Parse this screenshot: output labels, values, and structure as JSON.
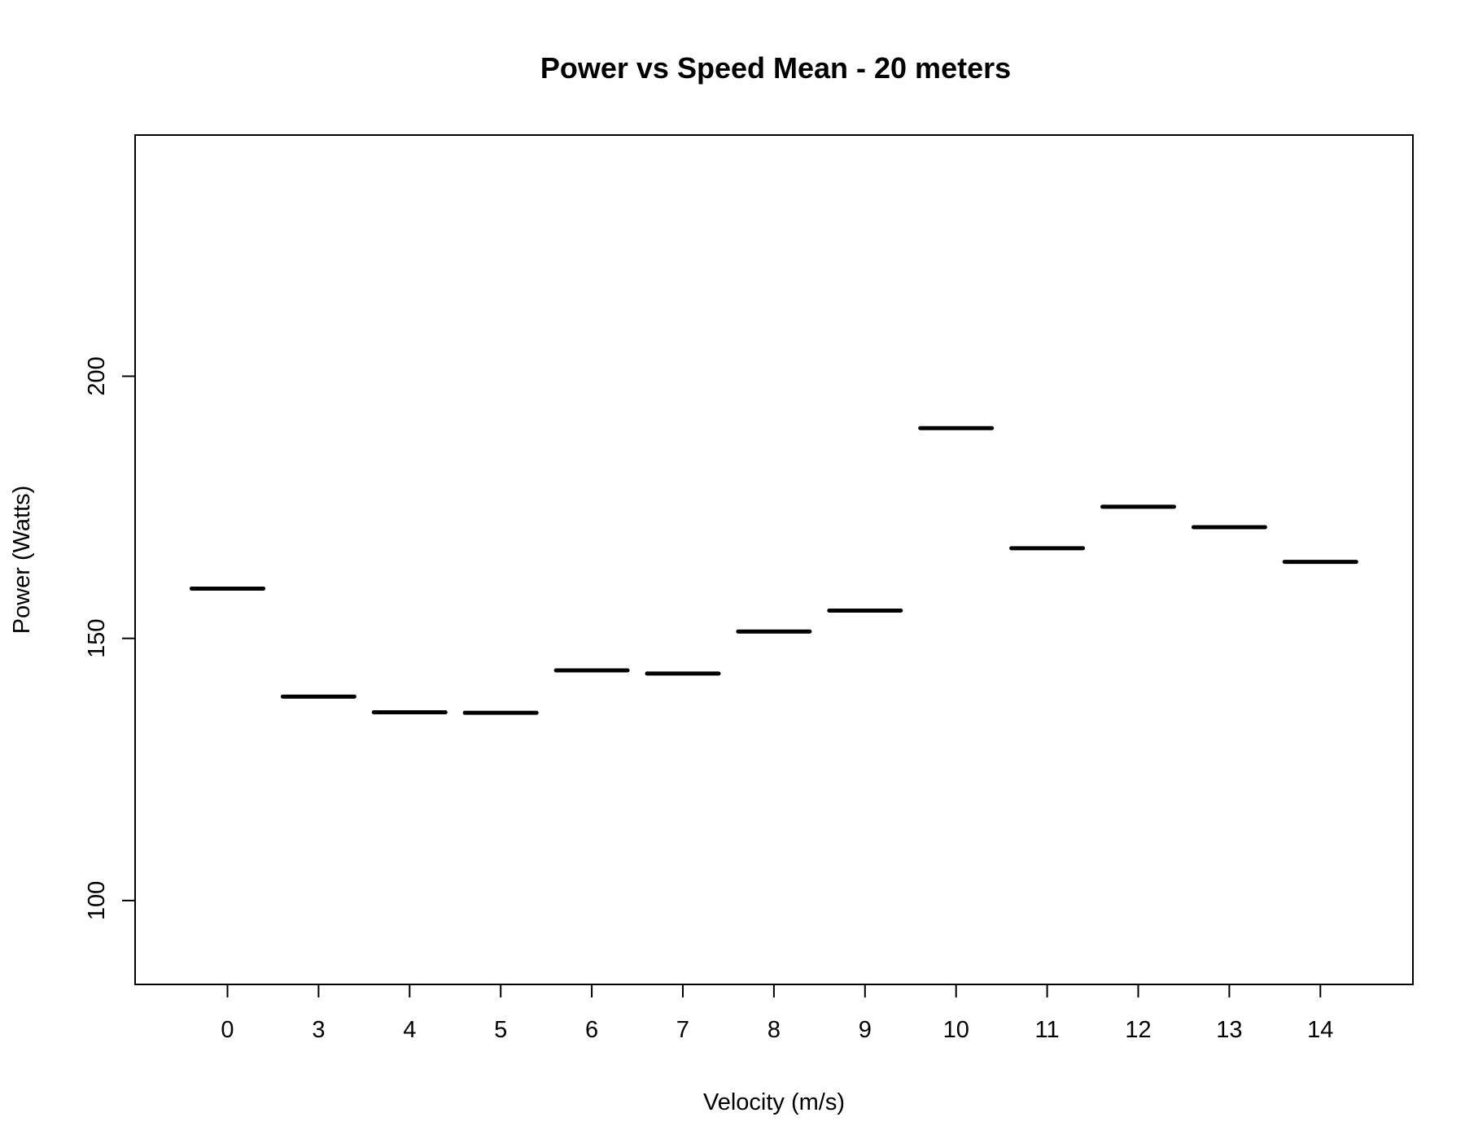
{
  "chart_data": {
    "type": "bar",
    "title": "Power vs Speed Mean - 20 meters",
    "xlabel": "Velocity (m/s)",
    "ylabel": "Power (Watts)",
    "categories": [
      "0",
      "3",
      "4",
      "5",
      "6",
      "7",
      "8",
      "9",
      "10",
      "11",
      "12",
      "13",
      "14"
    ],
    "values": [
      159.5,
      138.9,
      135.9,
      135.8,
      143.9,
      143.3,
      151.3,
      155.3,
      190.1,
      167.2,
      175.1,
      171.2,
      164.6
    ],
    "ylim": [
      84,
      246
    ],
    "yticks": [
      100,
      150,
      200
    ],
    "grid": false
  }
}
